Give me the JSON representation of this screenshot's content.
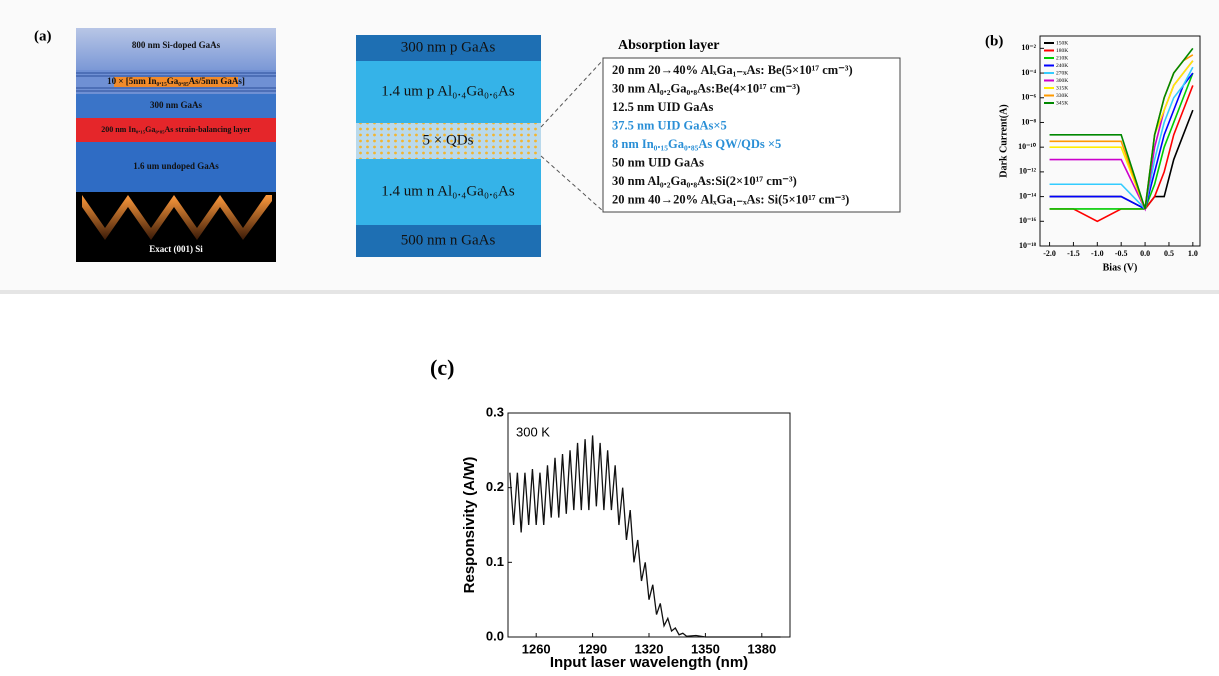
{
  "panel_a": {
    "label": "(a)",
    "substrate_stack": [
      "800 nm Si-doped GaAs",
      "10 × [5nm In₀.₁₅Ga₀.₈₅As/5nm GaAs]",
      "300 nm GaAs",
      "200 nm In₀.₁₅Ga₀.₈₅As strain-balancing layer",
      "1.6 um undoped GaAs",
      "Exact  (001) Si"
    ],
    "device_stack": [
      "300 nm p GaAs",
      "1.4 um p Al₀.₄Ga₀.₆As",
      "5 × QDs",
      "1.4 um n Al₀.₄Ga₀.₆As",
      "500 nm n GaAs"
    ],
    "absorption_title": "Absorption layer",
    "absorption_lines": [
      {
        "text": "20 nm 20→40% AlₓGa₁₋ₓAs: Be(5×10¹⁷ cm⁻³)",
        "color": "#111111"
      },
      {
        "text": "30 nm Al₀.₂Ga₀.₈As:Be(4×10¹⁷ cm⁻³)",
        "color": "#111111"
      },
      {
        "text": "12.5 nm UID GaAs",
        "color": "#111111"
      },
      {
        "text": "37.5 nm UID GaAs×5",
        "color": "#2a8fd6"
      },
      {
        "text": "8 nm In₀.₁₅Ga₀.₈₅As QW/QDs ×5",
        "color": "#2a8fd6"
      },
      {
        "text": "50 nm UID GaAs",
        "color": "#111111"
      },
      {
        "text": "30 nm Al₀.₂Ga₀.₈As:Si(2×10¹⁷ cm⁻³)",
        "color": "#111111"
      },
      {
        "text": "20 nm 40→20% AlₓGa₁₋ₓAs: Si(5×10¹⁷ cm⁻³)",
        "color": "#111111"
      }
    ]
  },
  "chart_data": [
    {
      "type": "line",
      "panel_label": "(b)",
      "x_label": "Bias (V)",
      "y_label": "Dark Current(A)",
      "log_y": true,
      "x": [
        -2,
        -1.5,
        -1,
        -0.5,
        0,
        0.2,
        0.4,
        0.6,
        0.8,
        1
      ],
      "xlim": [
        -2.2,
        1.15
      ],
      "ylim": [
        1e-18,
        0.1
      ],
      "xticks": [
        {
          "value": -2,
          "label": "-2.0"
        },
        -1.5,
        {
          "value": -1,
          "label": "-1.0"
        },
        -0.5,
        {
          "value": 0,
          "label": "0.0"
        },
        0.5,
        {
          "value": 1,
          "label": "1.0"
        }
      ],
      "yticks": [
        {
          "value": 1e-18,
          "label": "10⁻¹⁸"
        },
        {
          "value": 1e-16,
          "label": "10⁻¹⁶"
        },
        {
          "value": 1e-14,
          "label": "10⁻¹⁴"
        },
        {
          "value": 1e-12,
          "label": "10⁻¹²"
        },
        {
          "value": 1e-10,
          "label": "10⁻¹⁰"
        },
        {
          "value": 1e-08,
          "label": "10⁻⁸"
        },
        {
          "value": 1e-06,
          "label": "10⁻⁶"
        },
        {
          "value": 0.0001,
          "label": "10⁻⁴"
        },
        {
          "value": 0.01,
          "label": "10⁻²"
        }
      ],
      "series": [
        {
          "name": "150K",
          "color": "#000000",
          "values": [
            1e-14,
            1e-14,
            1e-14,
            1e-14,
            1e-15,
            1e-14,
            1e-14,
            1e-11,
            1e-09,
            1e-07
          ]
        },
        {
          "name": "180K",
          "color": "#ff0000",
          "values": [
            1e-15,
            1e-15,
            1e-16,
            1e-15,
            1e-15,
            1e-14,
            1e-12,
            1e-09,
            1e-07,
            1e-05
          ]
        },
        {
          "name": "210K",
          "color": "#00cc00",
          "values": [
            1e-15,
            1e-15,
            1e-15,
            1e-15,
            1e-15,
            1e-13,
            1e-10,
            1e-08,
            1e-06,
            0.0001
          ]
        },
        {
          "name": "240K",
          "color": "#0000ff",
          "values": [
            1e-14,
            1e-14,
            1e-14,
            1e-14,
            1e-15,
            1e-12,
            1e-09,
            1e-07,
            1e-05,
            0.0001
          ]
        },
        {
          "name": "270K",
          "color": "#33ccff",
          "values": [
            1e-13,
            1e-13,
            1e-13,
            1e-13,
            1e-15,
            1e-11,
            1e-08,
            1e-06,
            1e-05,
            0.0003
          ]
        },
        {
          "name": "300K",
          "color": "#cc00cc",
          "values": [
            1e-11,
            1e-11,
            1e-11,
            1e-11,
            1e-15,
            1e-10,
            1e-07,
            1e-05,
            0.0001,
            0.001
          ]
        },
        {
          "name": "315K",
          "color": "#ffee00",
          "values": [
            1e-10,
            1e-10,
            1e-10,
            1e-10,
            1e-15,
            1e-09,
            1e-07,
            1e-05,
            0.0001,
            0.001
          ]
        },
        {
          "name": "330K",
          "color": "#ff9900",
          "values": [
            3e-10,
            3e-10,
            3e-10,
            3e-10,
            1e-15,
            1e-09,
            1e-06,
            0.0001,
            0.001,
            0.003
          ]
        },
        {
          "name": "345K",
          "color": "#008800",
          "values": [
            1e-09,
            1e-09,
            1e-09,
            1e-09,
            1e-15,
            1e-09,
            1e-06,
            0.0001,
            0.001,
            0.01
          ]
        }
      ]
    },
    {
      "type": "line",
      "panel_label": "(c)",
      "x_label": "Input laser wavelength (nm)",
      "y_label": "Responsivity (A/W)",
      "annotation": "300 K",
      "color": "#111111",
      "x": [
        1246,
        1248,
        1250,
        1252,
        1254,
        1256,
        1258,
        1260,
        1262,
        1264,
        1266,
        1268,
        1270,
        1272,
        1274,
        1276,
        1278,
        1280,
        1282,
        1284,
        1286,
        1288,
        1290,
        1292,
        1294,
        1296,
        1298,
        1300,
        1302,
        1304,
        1306,
        1308,
        1310,
        1312,
        1314,
        1316,
        1318,
        1320,
        1322,
        1324,
        1326,
        1328,
        1330,
        1332,
        1334,
        1336,
        1338,
        1340,
        1345,
        1350,
        1360,
        1370,
        1380,
        1390
      ],
      "values": [
        0.22,
        0.15,
        0.22,
        0.14,
        0.22,
        0.15,
        0.225,
        0.15,
        0.22,
        0.15,
        0.23,
        0.16,
        0.24,
        0.16,
        0.245,
        0.165,
        0.25,
        0.17,
        0.26,
        0.17,
        0.265,
        0.17,
        0.27,
        0.175,
        0.26,
        0.17,
        0.25,
        0.17,
        0.23,
        0.15,
        0.2,
        0.13,
        0.17,
        0.1,
        0.13,
        0.075,
        0.1,
        0.05,
        0.07,
        0.03,
        0.045,
        0.015,
        0.025,
        0.008,
        0.012,
        0.003,
        0.005,
        0.001,
        0.002,
        0,
        0,
        0,
        0,
        0
      ],
      "xlim": [
        1245,
        1395
      ],
      "ylim": [
        0,
        0.3
      ],
      "xticks": [
        1260,
        1290,
        1320,
        1350,
        1380
      ],
      "yticks": [
        {
          "value": 0,
          "label": "0.0"
        },
        0.1,
        0.2,
        0.3
      ]
    }
  ]
}
